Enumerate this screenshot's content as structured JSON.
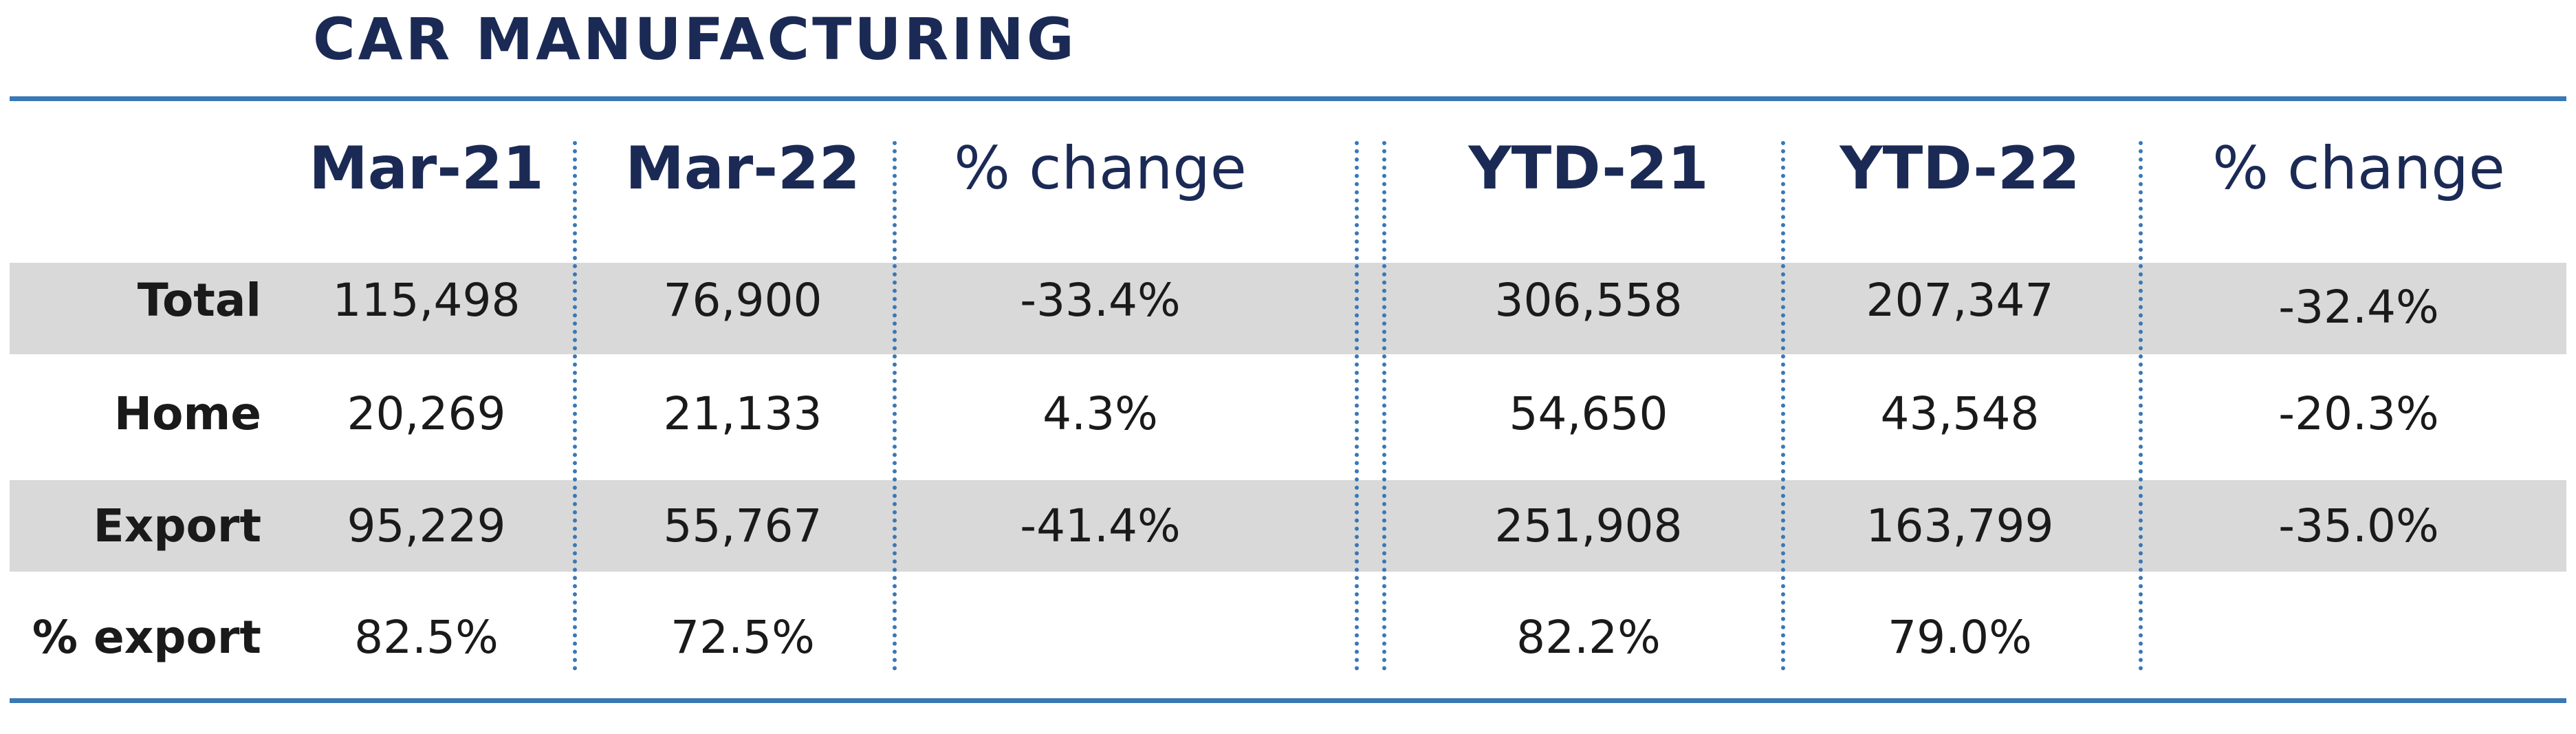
{
  "title": "CAR MANUFACTURING",
  "columns": [
    "Mar-21",
    "Mar-22",
    "% change",
    "YTD-21",
    "YTD-22",
    "% change"
  ],
  "rows": [
    {
      "label": "Total",
      "values": [
        "115,498",
        "76,900",
        "-33.4%",
        "306,558",
        "207,347",
        "-32.4%"
      ]
    },
    {
      "label": "Home",
      "values": [
        "20,269",
        "21,133",
        "4.3%",
        "54,650",
        "43,548",
        "-20.3%"
      ]
    },
    {
      "label": "Export",
      "values": [
        "95,229",
        "55,767",
        "-41.4%",
        "251,908",
        "163,799",
        "-35.0%"
      ]
    },
    {
      "label": "% export",
      "values": [
        "82.5%",
        "72.5%",
        "",
        "82.2%",
        "79.0%",
        ""
      ]
    }
  ],
  "colors": {
    "title": "#1b2a55",
    "rule": "#3a78b5",
    "band": "#d9d9d9"
  }
}
